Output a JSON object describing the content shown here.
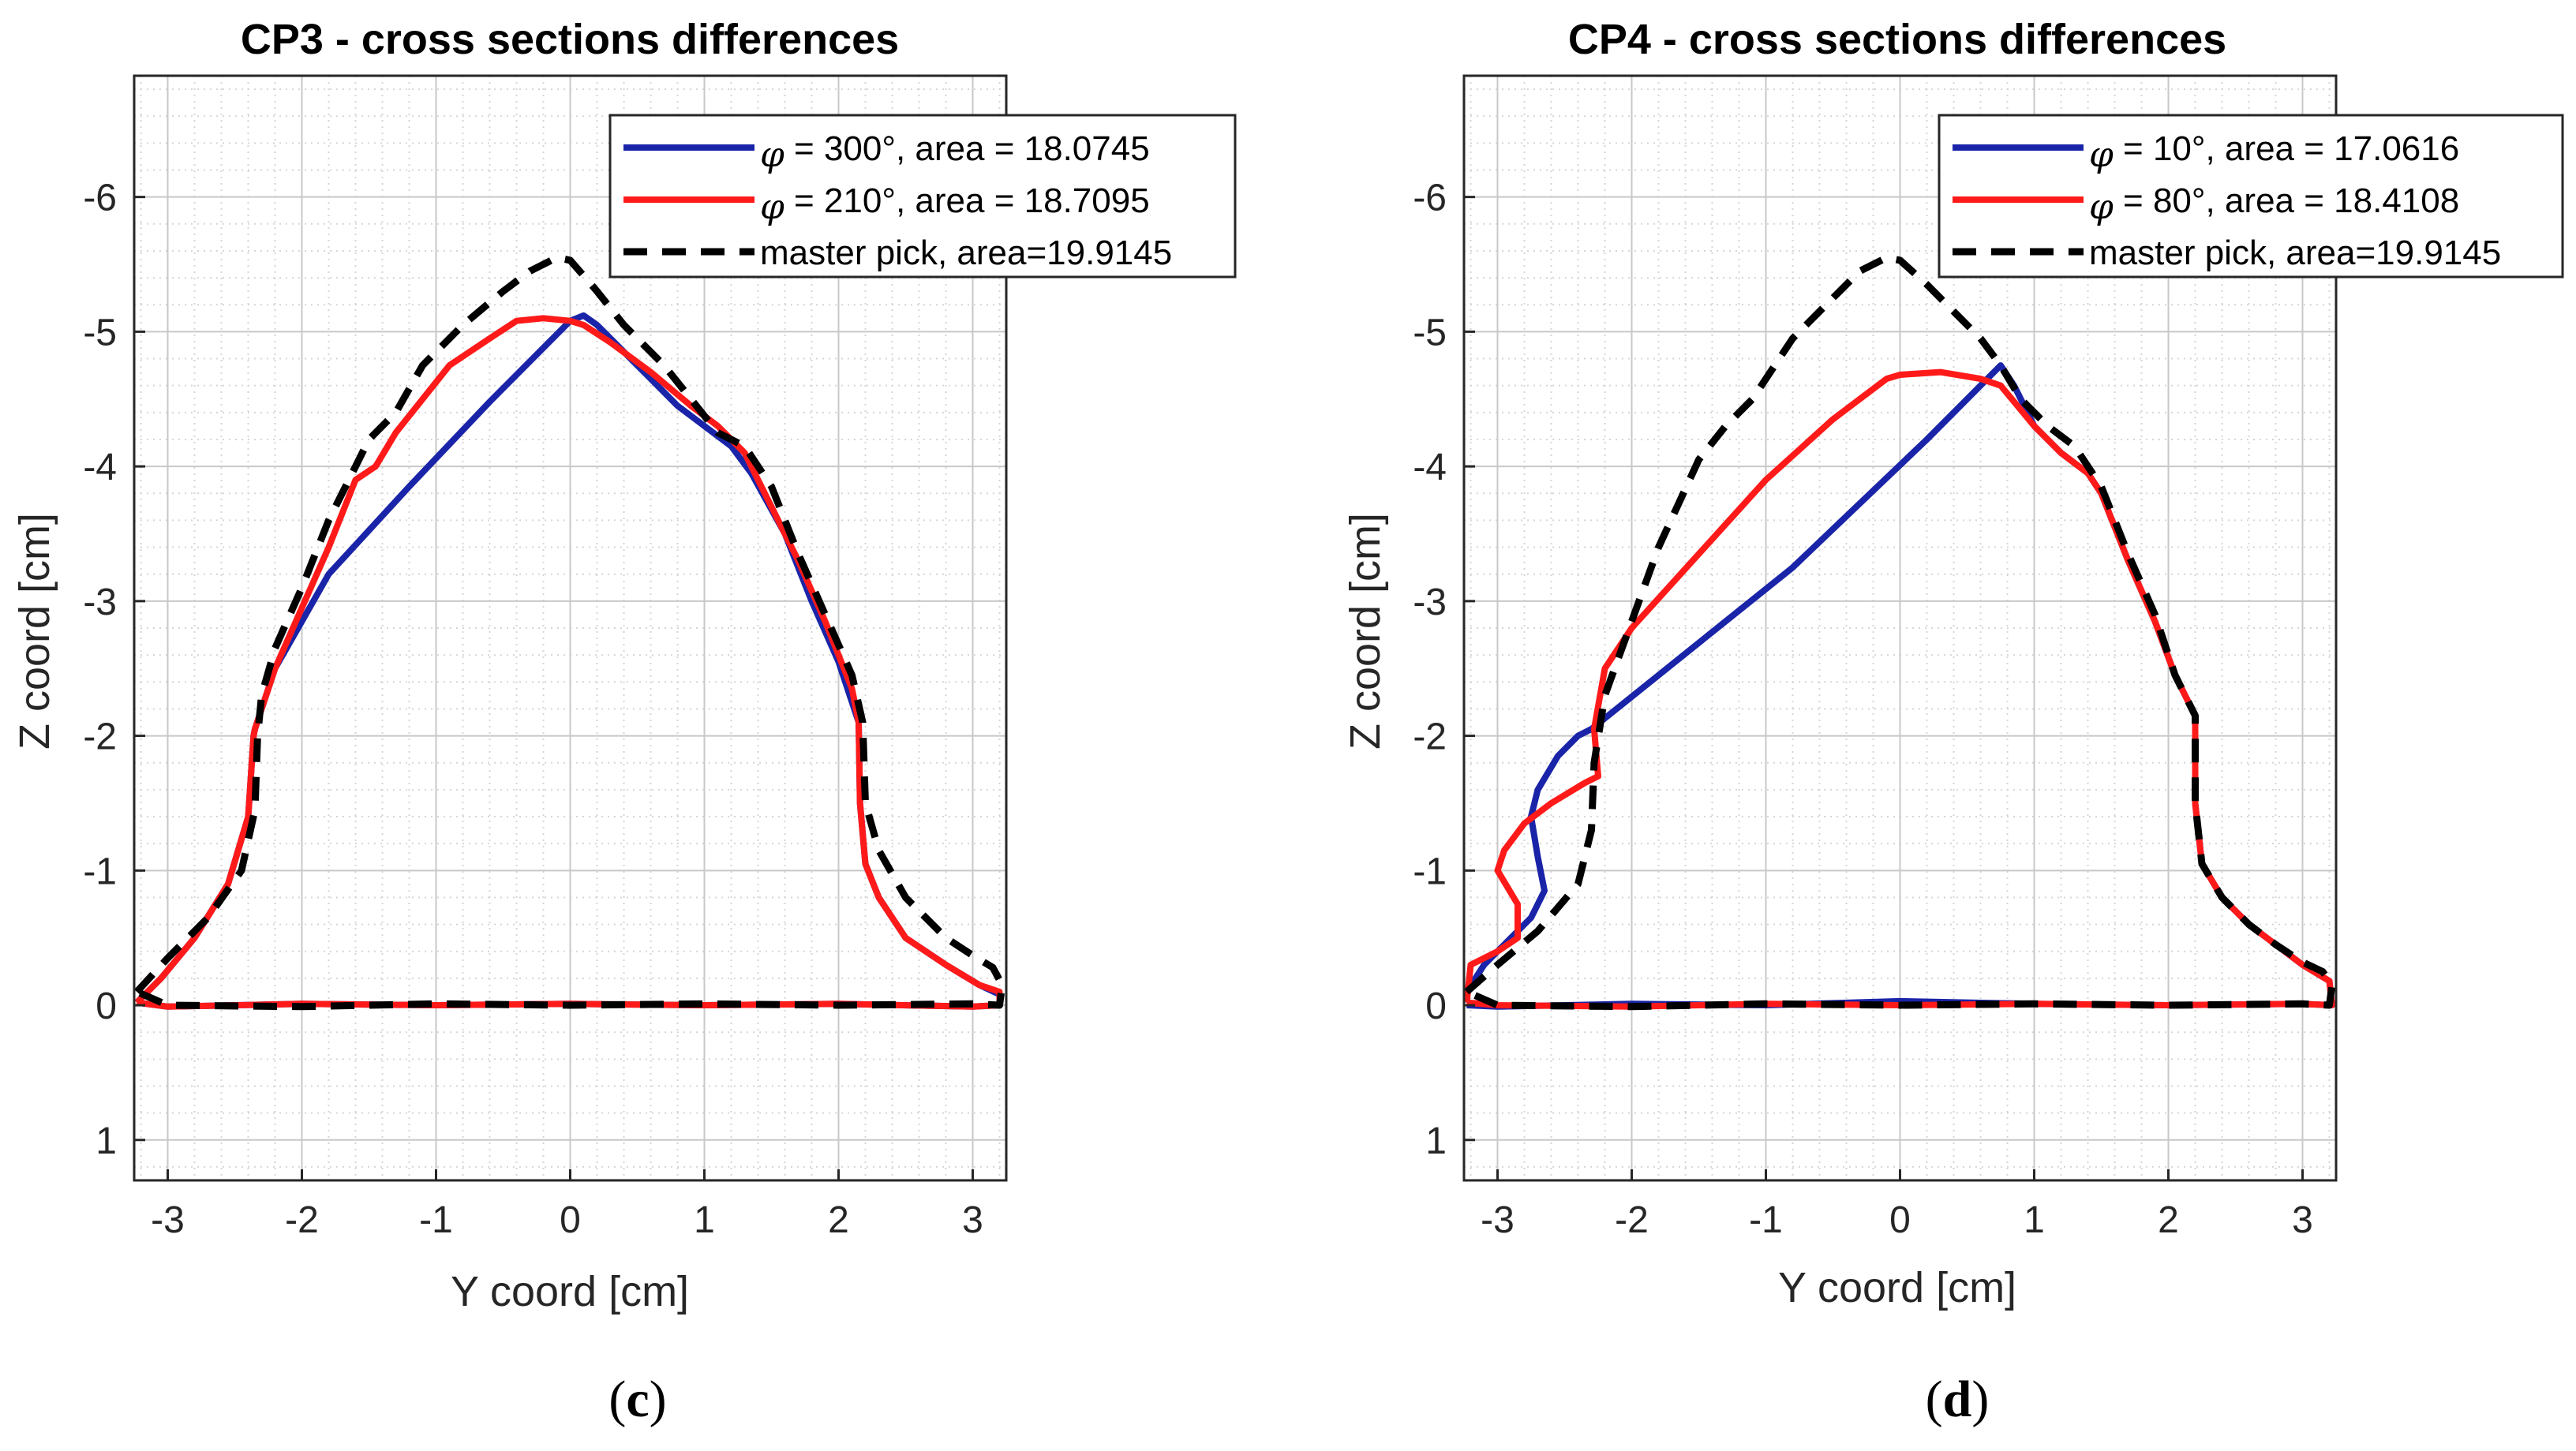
{
  "figure": {
    "captions": [
      "(",
      "c",
      ")",
      "(",
      "d",
      ")"
    ]
  },
  "chart_data": [
    {
      "type": "line",
      "panel": "c",
      "caption_letter": "c",
      "title": "CP3 - cross sections differences",
      "xlabel": "Y coord [cm]",
      "ylabel": "Z coord [cm]",
      "xlim": [
        -3.25,
        3.25
      ],
      "ylim": [
        1.3,
        -6.9
      ],
      "y_axis_reversed": true,
      "grid": true,
      "minor_grid": true,
      "xticks": [
        -3,
        -2,
        -1,
        0,
        1,
        2,
        3
      ],
      "xtick_labels": [
        "-3",
        "-2",
        "-1",
        "0",
        "1",
        "2",
        "3"
      ],
      "yticks": [
        -6,
        -5,
        -4,
        -3,
        -2,
        -1,
        0,
        1
      ],
      "ytick_labels": [
        "-6",
        "-5",
        "-4",
        "-3",
        "-2",
        "-1",
        "0",
        "1"
      ],
      "legend_position": "top-right",
      "series": [
        {
          "name": "φ = 300°, area = 18.0745",
          "legend_symbol": "φ",
          "legend_text": " = 300°, area = 18.0745",
          "color": "#1a24a8",
          "style": "solid",
          "x": [
            -3.23,
            -3.05,
            -2.8,
            -2.55,
            -2.4,
            -2.36,
            -2.35,
            -2.3,
            -2.2,
            -2.0,
            -1.8,
            -1.2,
            -0.6,
            0.0,
            0.1,
            0.2,
            0.4,
            0.6,
            0.8,
            1.0,
            1.2,
            1.35,
            1.6,
            1.8,
            2.0,
            2.15,
            2.16,
            2.2,
            2.3,
            2.5,
            2.8,
            3.05,
            3.2,
            3.2,
            3.0,
            2.0,
            1.0,
            0.0,
            -1.0,
            -2.0,
            -3.0,
            -3.23
          ],
          "y": [
            -0.02,
            -0.2,
            -0.5,
            -0.9,
            -1.4,
            -2.0,
            -2.05,
            -2.2,
            -2.5,
            -2.85,
            -3.2,
            -3.85,
            -4.48,
            -5.08,
            -5.12,
            -5.05,
            -4.85,
            -4.65,
            -4.45,
            -4.3,
            -4.15,
            -3.95,
            -3.5,
            -3.0,
            -2.55,
            -2.1,
            -1.5,
            -1.05,
            -0.8,
            -0.5,
            -0.3,
            -0.15,
            -0.08,
            0.0,
            0.01,
            -0.01,
            0.0,
            -0.01,
            0.0,
            -0.01,
            0.01,
            -0.02
          ]
        },
        {
          "name": "φ = 210°, area = 18.7095",
          "legend_symbol": "φ",
          "legend_text": " = 210°, area = 18.7095",
          "color": "#ff1a1a",
          "style": "solid",
          "x": [
            -3.23,
            -3.05,
            -2.8,
            -2.55,
            -2.4,
            -2.36,
            -2.35,
            -2.3,
            -2.2,
            -2.0,
            -1.8,
            -1.6,
            -1.45,
            -1.3,
            -1.1,
            -0.9,
            -0.6,
            -0.4,
            -0.2,
            0.0,
            0.1,
            0.3,
            0.6,
            0.9,
            1.1,
            1.3,
            1.5,
            1.7,
            1.9,
            2.1,
            2.15,
            2.16,
            2.2,
            2.3,
            2.5,
            2.8,
            3.05,
            3.2,
            3.2,
            3.0,
            2.0,
            1.0,
            0.0,
            -1.0,
            -2.0,
            -3.0,
            -3.23
          ],
          "y": [
            -0.02,
            -0.2,
            -0.5,
            -0.9,
            -1.4,
            -2.0,
            -2.05,
            -2.2,
            -2.5,
            -2.95,
            -3.4,
            -3.9,
            -4.0,
            -4.25,
            -4.5,
            -4.75,
            -4.95,
            -5.08,
            -5.1,
            -5.08,
            -5.05,
            -4.92,
            -4.7,
            -4.45,
            -4.3,
            -4.1,
            -3.7,
            -3.3,
            -2.85,
            -2.35,
            -2.1,
            -1.5,
            -1.05,
            -0.8,
            -0.5,
            -0.3,
            -0.15,
            -0.1,
            0.0,
            0.01,
            -0.01,
            0.0,
            -0.01,
            0.0,
            -0.01,
            0.01,
            -0.02
          ]
        },
        {
          "name": "master pick, area=19.9145",
          "legend_symbol": "",
          "legend_text": "master pick, area=19.9145",
          "color": "#000000",
          "style": "dashed",
          "x": [
            -3.23,
            -3.0,
            -2.7,
            -2.45,
            -2.35,
            -2.33,
            -2.3,
            -2.2,
            -2.0,
            -1.8,
            -1.5,
            -1.3,
            -1.1,
            -0.8,
            -0.5,
            -0.3,
            -0.1,
            0.0,
            0.2,
            0.4,
            0.7,
            0.9,
            1.1,
            1.3,
            1.5,
            1.7,
            1.9,
            2.1,
            2.18,
            2.2,
            2.3,
            2.5,
            2.8,
            3.0,
            3.15,
            3.22,
            3.2,
            3.0,
            2.0,
            1.0,
            0.0,
            -1.0,
            -2.0,
            -3.0,
            -3.23
          ],
          "y": [
            -0.1,
            -0.35,
            -0.65,
            -1.0,
            -1.45,
            -2.0,
            -2.3,
            -2.65,
            -3.1,
            -3.6,
            -4.2,
            -4.4,
            -4.75,
            -5.05,
            -5.3,
            -5.45,
            -5.55,
            -5.53,
            -5.3,
            -5.05,
            -4.75,
            -4.5,
            -4.25,
            -4.15,
            -3.85,
            -3.35,
            -2.9,
            -2.45,
            -2.1,
            -1.5,
            -1.15,
            -0.8,
            -0.5,
            -0.37,
            -0.28,
            -0.15,
            0.0,
            -0.01,
            0.0,
            -0.01,
            0.0,
            -0.01,
            0.01,
            0.0,
            -0.1
          ]
        }
      ]
    },
    {
      "type": "line",
      "panel": "d",
      "caption_letter": "d",
      "title": "CP4 - cross sections differences",
      "xlabel": "Y coord [cm]",
      "ylabel": "Z coord [cm]",
      "xlim": [
        -3.25,
        3.25
      ],
      "ylim": [
        1.3,
        -6.9
      ],
      "y_axis_reversed": true,
      "grid": true,
      "minor_grid": true,
      "xticks": [
        -3,
        -2,
        -1,
        0,
        1,
        2,
        3
      ],
      "xtick_labels": [
        "-3",
        "-2",
        "-1",
        "0",
        "1",
        "2",
        "3"
      ],
      "yticks": [
        -6,
        -5,
        -4,
        -3,
        -2,
        -1,
        0,
        1
      ],
      "ytick_labels": [
        "-6",
        "-5",
        "-4",
        "-3",
        "-2",
        "-1",
        "0",
        "1"
      ],
      "legend_position": "top-right",
      "series": [
        {
          "name": "φ = 10°, area = 17.0616",
          "legend_symbol": "φ",
          "legend_text": " = 10°, area = 17.0616",
          "color": "#1a24a8",
          "style": "solid",
          "x": [
            -3.23,
            -3.1,
            -2.95,
            -2.75,
            -2.65,
            -2.7,
            -2.75,
            -2.7,
            -2.55,
            -2.4,
            -2.3,
            -0.8,
            0.2,
            0.75,
            0.85,
            1.0,
            1.2,
            1.4,
            1.5,
            1.7,
            1.9,
            2.05,
            2.2,
            2.2,
            2.25,
            2.4,
            2.6,
            2.8,
            3.0,
            3.2,
            3.22,
            3.0,
            2.0,
            1.0,
            0.0,
            -1.0,
            -2.0,
            -3.0,
            -3.23
          ],
          "y": [
            -0.1,
            -0.3,
            -0.45,
            -0.65,
            -0.85,
            -1.1,
            -1.4,
            -1.6,
            -1.85,
            -2.0,
            -2.05,
            -3.25,
            -4.2,
            -4.75,
            -4.6,
            -4.3,
            -4.1,
            -3.95,
            -3.8,
            -3.3,
            -2.85,
            -2.45,
            -2.15,
            -1.5,
            -1.05,
            -0.8,
            -0.6,
            -0.45,
            -0.3,
            -0.18,
            0.0,
            -0.01,
            0.0,
            -0.01,
            -0.03,
            0.0,
            -0.01,
            0.01,
            0.0
          ]
        },
        {
          "name": "φ = 80°, area = 18.4108",
          "legend_symbol": "φ",
          "legend_text": " = 80°, area = 18.4108",
          "color": "#ff1a1a",
          "style": "solid",
          "x": [
            -3.23,
            -3.2,
            -3.0,
            -2.85,
            -2.85,
            -3.0,
            -2.95,
            -2.8,
            -2.6,
            -2.35,
            -2.25,
            -2.28,
            -2.2,
            -2.0,
            -1.5,
            -1.0,
            -0.5,
            -0.1,
            0.0,
            0.3,
            0.6,
            0.75,
            1.0,
            1.2,
            1.4,
            1.5,
            1.7,
            1.9,
            2.05,
            2.2,
            2.2,
            2.25,
            2.4,
            2.6,
            2.8,
            3.0,
            3.2,
            3.22,
            3.0,
            2.0,
            1.0,
            0.0,
            -1.0,
            -2.0,
            -3.0,
            -3.23
          ],
          "y": [
            -0.02,
            -0.3,
            -0.4,
            -0.5,
            -0.75,
            -1.0,
            -1.15,
            -1.35,
            -1.5,
            -1.65,
            -1.7,
            -2.05,
            -2.5,
            -2.8,
            -3.35,
            -3.9,
            -4.35,
            -4.65,
            -4.68,
            -4.7,
            -4.65,
            -4.6,
            -4.3,
            -4.1,
            -3.95,
            -3.8,
            -3.3,
            -2.85,
            -2.45,
            -2.15,
            -1.5,
            -1.05,
            -0.8,
            -0.6,
            -0.45,
            -0.3,
            -0.18,
            0.0,
            -0.01,
            0.0,
            -0.01,
            0.0,
            -0.01,
            0.01,
            0.0,
            -0.02
          ]
        },
        {
          "name": "master pick, area=19.9145",
          "legend_symbol": "",
          "legend_text": "master pick, area=19.9145",
          "color": "#000000",
          "style": "dashed",
          "x": [
            -3.23,
            -3.0,
            -2.7,
            -2.4,
            -2.3,
            -2.28,
            -2.2,
            -2.0,
            -1.8,
            -1.5,
            -1.3,
            -1.1,
            -0.8,
            -0.5,
            -0.3,
            -0.1,
            0.0,
            0.2,
            0.4,
            0.6,
            0.75,
            0.9,
            1.1,
            1.3,
            1.5,
            1.7,
            1.9,
            2.05,
            2.2,
            2.2,
            2.25,
            2.4,
            2.6,
            2.8,
            3.0,
            3.15,
            3.22,
            3.2,
            3.0,
            2.0,
            1.0,
            0.0,
            -1.0,
            -2.0,
            -3.0,
            -3.23
          ],
          "y": [
            -0.1,
            -0.3,
            -0.55,
            -0.9,
            -1.3,
            -1.8,
            -2.3,
            -2.85,
            -3.4,
            -4.05,
            -4.3,
            -4.5,
            -4.95,
            -5.25,
            -5.45,
            -5.55,
            -5.53,
            -5.35,
            -5.15,
            -4.95,
            -4.75,
            -4.5,
            -4.3,
            -4.15,
            -3.85,
            -3.35,
            -2.9,
            -2.45,
            -2.15,
            -1.5,
            -1.05,
            -0.8,
            -0.6,
            -0.45,
            -0.32,
            -0.25,
            -0.15,
            0.0,
            -0.01,
            0.0,
            -0.01,
            0.0,
            -0.01,
            0.01,
            0.0,
            -0.1
          ]
        }
      ]
    }
  ]
}
